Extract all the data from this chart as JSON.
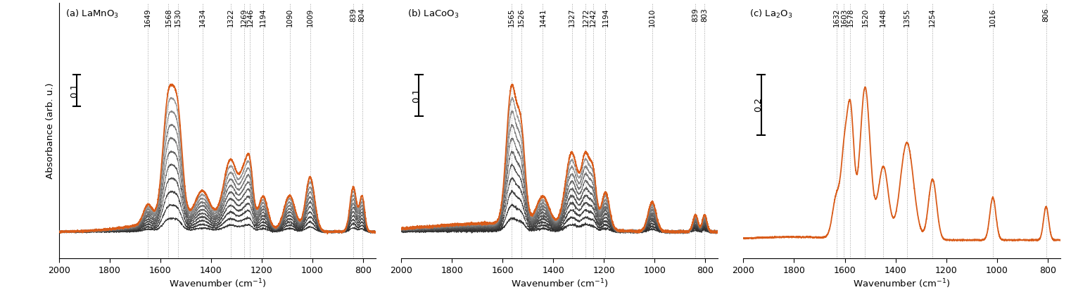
{
  "panels": [
    {
      "label_a": "(a) LaMnO",
      "label_sub": "3",
      "label": "(a) LaMnO$_3$",
      "scale_label": "0.1",
      "scale_value": 0.1,
      "peaks": [
        1649,
        1568,
        1530,
        1434,
        1322,
        1269,
        1246,
        1194,
        1090,
        1009,
        839,
        804
      ],
      "n_gray_spectra": 10
    },
    {
      "label": "(b) LaCoO$_3$",
      "scale_label": "0.1",
      "scale_value": 0.1,
      "peaks": [
        1565,
        1526,
        1441,
        1327,
        1272,
        1242,
        1194,
        1010,
        839,
        803
      ],
      "n_gray_spectra": 10
    },
    {
      "label": "(c) La$_2$O$_3$",
      "scale_label": "0.2",
      "scale_value": 0.2,
      "peaks": [
        1632,
        1603,
        1578,
        1520,
        1448,
        1355,
        1254,
        1016,
        806
      ],
      "n_gray_spectra": 0
    }
  ],
  "ylabel": "Absorbance (arb. u.)",
  "xlabel": "Wavenumber (cm$^{-1}$)",
  "orange_color": "#D95C1A",
  "bg_color": "#ffffff"
}
